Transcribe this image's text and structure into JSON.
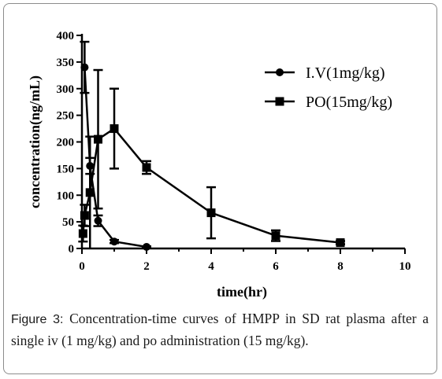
{
  "chart_data": {
    "type": "line",
    "xlabel": "time(hr)",
    "ylabel": "concentration(ng/mL)",
    "xlim": [
      0,
      10
    ],
    "ylim": [
      0,
      400
    ],
    "xticks": [
      0,
      2,
      4,
      6,
      8,
      10
    ],
    "yticks": [
      0,
      50,
      100,
      150,
      200,
      250,
      300,
      350,
      400
    ],
    "grid": false,
    "legend_position": "top-right",
    "series": [
      {
        "name": "I.V(1mg/kg)",
        "marker": "circle",
        "x": [
          0.083,
          0.25,
          0.5,
          1,
          2
        ],
        "y": [
          340,
          155,
          52,
          13,
          3
        ],
        "err": [
          48,
          15,
          10,
          3,
          1
        ]
      },
      {
        "name": "PO(15mg/kg)",
        "marker": "square",
        "x": [
          0.033,
          0.083,
          0.25,
          0.5,
          1,
          2,
          4,
          6,
          8
        ],
        "y": [
          28,
          62,
          105,
          205,
          225,
          152,
          67,
          24,
          11
        ],
        "err": [
          15,
          20,
          105,
          130,
          75,
          12,
          48,
          10,
          3
        ]
      }
    ]
  },
  "caption": {
    "label": "Figure 3:",
    "text": " Concentration-time curves of HMPP in SD rat plasma after a single iv (1 mg/kg) and po administration (15 mg/kg)."
  }
}
